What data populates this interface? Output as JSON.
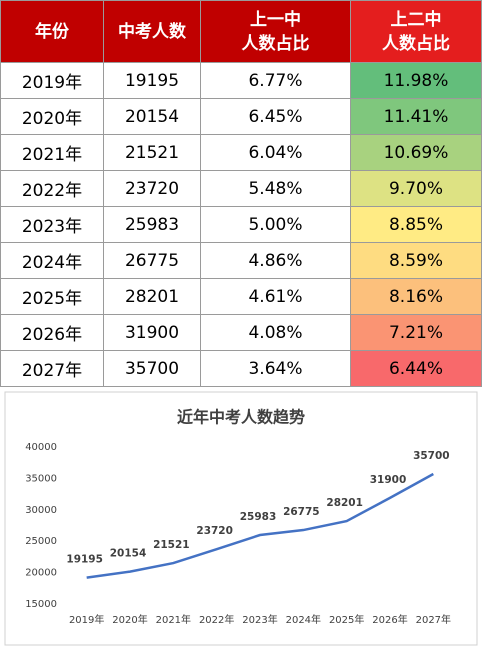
{
  "table": {
    "header": [
      [
        "年份"
      ],
      [
        "中考人数"
      ],
      [
        "上一中",
        "人数占比"
      ],
      [
        "上二中",
        "人数占比"
      ]
    ],
    "rows": [
      [
        "2019年",
        "19195",
        "6.77%",
        "11.98%"
      ],
      [
        "2020年",
        "20154",
        "6.45%",
        "11.41%"
      ],
      [
        "2021年",
        "21521",
        "6.04%",
        "10.69%"
      ],
      [
        "2022年",
        "23720",
        "5.48%",
        "9.70%"
      ],
      [
        "2023年",
        "25983",
        "5.00%",
        "8.85%"
      ],
      [
        "2024年",
        "26775",
        "4.86%",
        "8.59%"
      ],
      [
        "2025年",
        "28201",
        "4.61%",
        "8.16%"
      ],
      [
        "2026年",
        "31900",
        "4.08%",
        "7.21%"
      ],
      [
        "2027年",
        "35700",
        "3.64%",
        "6.44%"
      ]
    ],
    "heat_colors": [
      "#63be7b",
      "#7fc77d",
      "#a8d27f",
      "#dde283",
      "#ffeb84",
      "#fedc81",
      "#fcc07c",
      "#fa9473",
      "#f8696b"
    ]
  },
  "chart_data": {
    "type": "line",
    "title": "近年中考人数趋势",
    "categories": [
      "2019年",
      "2020年",
      "2021年",
      "2022年",
      "2023年",
      "2024年",
      "2025年",
      "2026年",
      "2027年"
    ],
    "values": [
      19195,
      20154,
      21521,
      23720,
      25983,
      26775,
      28201,
      31900,
      35700
    ],
    "color": "#4472c4",
    "ylim": [
      15000,
      40000
    ],
    "yticks": [
      15000,
      20000,
      25000,
      30000,
      35000,
      40000
    ],
    "grid": false
  }
}
